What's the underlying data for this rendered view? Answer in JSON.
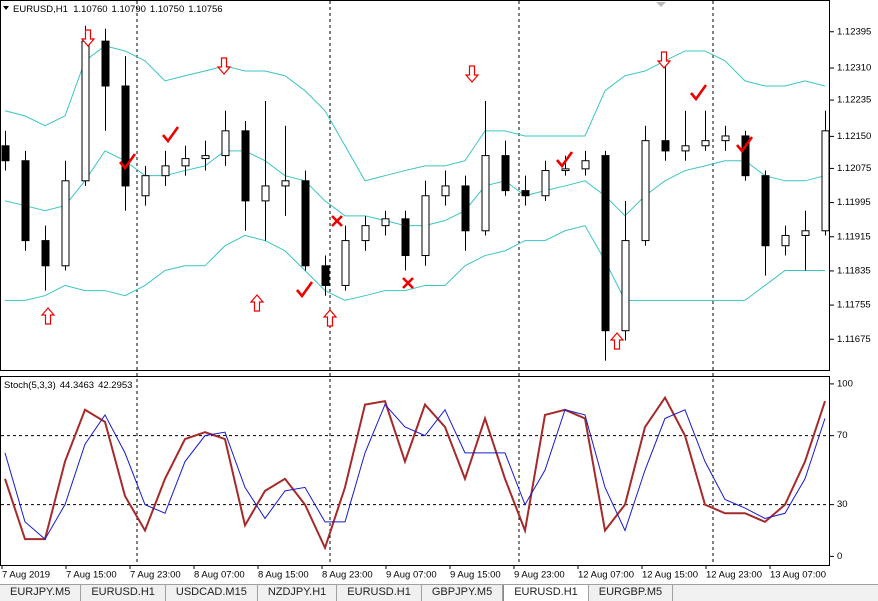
{
  "chart_data": [
    {
      "type": "candlestick",
      "title": "EURUSD,H1",
      "quote": [
        "1.10760",
        "1.10790",
        "1.10750",
        "1.10756"
      ],
      "open": [
        1.12128,
        1.12093,
        1.11906,
        1.11847,
        1.12046,
        1.12373,
        1.12268,
        1.12011,
        1.12058,
        1.12081,
        1.12098,
        1.12105,
        1.12163,
        1.11999,
        1.12034,
        1.12046,
        1.11847,
        1.11801,
        1.11906,
        1.11941,
        1.11957,
        1.11871,
        1.12011,
        1.12034,
        1.11929,
        1.12105,
        1.12023,
        1.12011,
        1.1207,
        1.12074,
        1.12105,
        1.11695,
        1.11906,
        1.1214,
        1.12116,
        1.12128,
        1.1214,
        1.12151,
        1.12058,
        1.11894,
        1.11918,
        1.11929
      ],
      "high": [
        1.12163,
        1.12116,
        1.11941,
        1.12093,
        1.12409,
        1.12402,
        1.12338,
        1.12081,
        1.12116,
        1.12128,
        1.1214,
        1.1221,
        1.12186,
        1.12233,
        1.12175,
        1.1207,
        1.11871,
        1.11941,
        1.11964,
        1.11976,
        1.11976,
        1.12046,
        1.1207,
        1.12058,
        1.12233,
        1.1214,
        1.12058,
        1.12093,
        1.12105,
        1.12116,
        1.12116,
        1.11999,
        1.12175,
        1.12338,
        1.1221,
        1.1221,
        1.12175,
        1.12163,
        1.1207,
        1.11941,
        1.11976,
        1.1221
      ],
      "low": [
        1.1207,
        1.11882,
        1.11789,
        1.11836,
        1.12034,
        1.12163,
        1.11976,
        1.11988,
        1.12034,
        1.12058,
        1.1207,
        1.12081,
        1.11929,
        1.11906,
        1.11964,
        1.11836,
        1.11777,
        1.11789,
        1.11882,
        1.11918,
        1.11836,
        1.11847,
        1.11988,
        1.11882,
        1.11918,
        1.12011,
        1.11988,
        1.11999,
        1.12058,
        1.12058,
        1.11625,
        1.11672,
        1.11894,
        1.12093,
        1.12093,
        1.12116,
        1.12116,
        1.12046,
        1.11824,
        1.11871,
        1.11836,
        1.11918
      ],
      "close": [
        1.12093,
        1.11906,
        1.11847,
        1.12046,
        1.12373,
        1.12268,
        1.12034,
        1.12058,
        1.12081,
        1.12098,
        1.12105,
        1.12163,
        1.11999,
        1.12034,
        1.12046,
        1.11847,
        1.11801,
        1.11906,
        1.11941,
        1.11957,
        1.11871,
        1.12011,
        1.12034,
        1.11929,
        1.12105,
        1.12023,
        1.12011,
        1.1207,
        1.12074,
        1.12093,
        1.11695,
        1.11906,
        1.1214,
        1.12116,
        1.12128,
        1.1214,
        1.12151,
        1.12058,
        1.11894,
        1.11918,
        1.11929,
        1.12163
      ],
      "bands": {
        "color": "#3cc4c4",
        "upper": [
          1.1221,
          1.12198,
          1.12175,
          1.12198,
          1.12327,
          1.12362,
          1.1235,
          1.12327,
          1.1228,
          1.12292,
          1.12303,
          1.12315,
          1.12303,
          1.12303,
          1.12292,
          1.12257,
          1.1221,
          1.12128,
          1.12046,
          1.12058,
          1.1207,
          1.12081,
          1.12081,
          1.12093,
          1.12163,
          1.12163,
          1.12151,
          1.12151,
          1.12151,
          1.12151,
          1.12257,
          1.12292,
          1.12303,
          1.12327,
          1.1235,
          1.1235,
          1.12327,
          1.1228,
          1.12268,
          1.12268,
          1.1228,
          1.12268
        ],
        "middle": [
          1.11999,
          1.11988,
          1.11976,
          1.11988,
          1.12046,
          1.12116,
          1.12093,
          1.12058,
          1.12058,
          1.1207,
          1.12081,
          1.12116,
          1.12116,
          1.12093,
          1.12058,
          1.12046,
          1.11999,
          1.11964,
          1.11964,
          1.11953,
          1.11941,
          1.11941,
          1.11953,
          1.11976,
          1.12034,
          1.12046,
          1.12011,
          1.12023,
          1.12034,
          1.12046,
          1.12011,
          1.11964,
          1.12011,
          1.12046,
          1.1207,
          1.12081,
          1.12093,
          1.12093,
          1.12058,
          1.12046,
          1.12046,
          1.12058
        ],
        "lower": [
          1.11766,
          1.11766,
          1.11777,
          1.11801,
          1.11789,
          1.11789,
          1.11777,
          1.11801,
          1.11836,
          1.11847,
          1.11847,
          1.11894,
          1.11918,
          1.11906,
          1.11882,
          1.11836,
          1.11789,
          1.11766,
          1.11777,
          1.11789,
          1.11789,
          1.11801,
          1.11801,
          1.11847,
          1.11871,
          1.11882,
          1.11906,
          1.11906,
          1.11929,
          1.11941,
          1.11859,
          1.11766,
          1.11766,
          1.11766,
          1.11766,
          1.11766,
          1.11766,
          1.11766,
          1.11801,
          1.11836,
          1.11836,
          1.11836
        ]
      },
      "ylim": [
        1.11603,
        1.12467
      ],
      "yticks": [
        1.12395,
        {
          "value": 1.1231,
          "label": "1.12310"
        },
        1.12235,
        {
          "value": 1.1215,
          "label": "1.12150"
        },
        1.12075,
        1.11995,
        1.11915,
        1.11835,
        1.11755,
        1.11675
      ]
    },
    {
      "type": "line",
      "title": "Stoch(5,3,3)",
      "readings": [
        44.3463,
        42.2953
      ],
      "series": [
        {
          "color": "#a52a2a",
          "values": [
            45,
            10,
            10,
            55,
            85,
            78,
            35,
            15,
            45,
            68,
            72,
            68,
            18,
            38,
            45,
            30,
            5,
            40,
            88,
            90,
            55,
            88,
            75,
            45,
            80,
            45,
            15,
            82,
            85,
            80,
            15,
            30,
            75,
            92,
            70,
            30,
            25,
            25,
            20,
            30,
            55,
            90
          ]
        },
        {
          "color": "#1a1acd",
          "values": [
            60,
            20,
            10,
            30,
            65,
            82,
            60,
            30,
            25,
            55,
            70,
            72,
            40,
            22,
            38,
            40,
            20,
            20,
            60,
            88,
            75,
            70,
            85,
            60,
            60,
            60,
            30,
            50,
            85,
            82,
            40,
            15,
            50,
            80,
            85,
            55,
            33,
            28,
            22,
            25,
            45,
            80
          ]
        }
      ],
      "ylim": [
        -5,
        104
      ],
      "yticks": [
        0,
        30,
        70,
        100
      ],
      "levels": [
        30,
        70
      ]
    }
  ],
  "time_labels": [
    "7 Aug 2019",
    "7 Aug 15:00",
    "7 Aug 23:00",
    "8 Aug 07:00",
    "8 Aug 15:00",
    "8 Aug 23:00",
    "9 Aug 07:00",
    "9 Aug 15:00",
    "9 Aug 23:00",
    "12 Aug 07:00",
    "12 Aug 15:00",
    "12 Aug 23:00",
    "13 Aug 07:00"
  ],
  "tabs": [
    "EURJPY.M5",
    "EURUSD.H1",
    "USDCAD.M15",
    "NZDJPY.H1",
    "EURUSD.H1",
    "GBPJPY.M5",
    "EURUSD.H1",
    "EURGBP.M5"
  ],
  "active_tab": 6
}
